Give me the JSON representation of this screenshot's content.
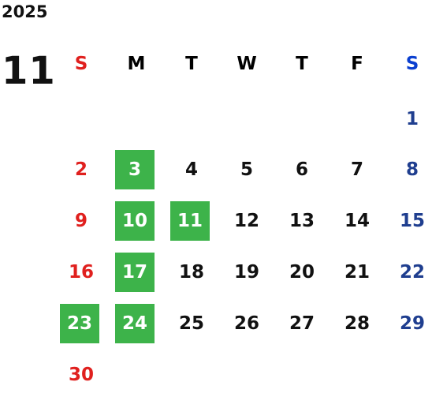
{
  "calendar": {
    "year": "2025",
    "month": "11",
    "weekdays": [
      "S",
      "M",
      "T",
      "W",
      "T",
      "F",
      "S"
    ],
    "weeks": [
      [
        "",
        "",
        "",
        "",
        "",
        "",
        "1"
      ],
      [
        "2",
        "3",
        "4",
        "5",
        "6",
        "7",
        "8"
      ],
      [
        "9",
        "10",
        "11",
        "12",
        "13",
        "14",
        "15"
      ],
      [
        "16",
        "17",
        "18",
        "19",
        "20",
        "21",
        "22"
      ],
      [
        "23",
        "24",
        "25",
        "26",
        "27",
        "28",
        "29"
      ],
      [
        "30",
        "",
        "",
        "",
        "",
        "",
        ""
      ]
    ],
    "highlighted_days": [
      "3",
      "10",
      "11",
      "17",
      "23",
      "24"
    ]
  },
  "colors": {
    "sunday": "#e0201e",
    "saturday": "#1f3e8f",
    "highlight": "#3db34a"
  }
}
